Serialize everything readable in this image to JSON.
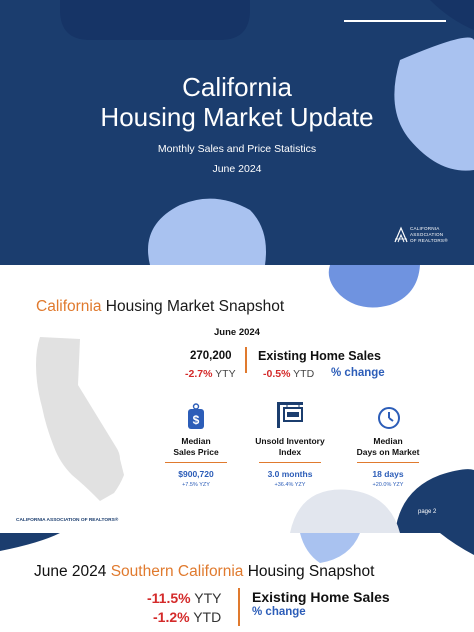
{
  "cover": {
    "title_line1": "California",
    "title_line2": "Housing Market Update",
    "subtitle": "Monthly Sales and Price Statistics",
    "date": "June 2024",
    "logo_line1": "CALIFORNIA",
    "logo_line2": "ASSOCIATION",
    "logo_line3": "OF REALTORS®"
  },
  "snapshot": {
    "title_prefix": "California",
    "title_rest": " Housing Market Snapshot",
    "period": "June 2024",
    "sales_value": "270,200",
    "sales_label": "Existing Home Sales",
    "yty_value": "-2.7%",
    "yty_label": " YTY",
    "ytd_value": "-0.5%",
    "ytd_label": " YTD",
    "pct_change_label": "% change",
    "metrics": [
      {
        "label_line1": "Median",
        "label_line2": "Sales Price",
        "value": "$900,720",
        "change": "+7.5% YZY"
      },
      {
        "label_line1": "Unsold Inventory",
        "label_line2": "Index",
        "value": "3.0 months",
        "change": "+36.4% YZY"
      },
      {
        "label_line1": "Median",
        "label_line2": "Days on Market",
        "value": "18 days",
        "change": "+20.0% YZY"
      }
    ],
    "footer_logo": "CALIFORNIA ASSOCIATION OF REALTORS®",
    "page": "page 2"
  },
  "southern": {
    "title_prefix": "June 2024 ",
    "title_region": "Southern California",
    "title_rest": " Housing Snapshot",
    "yty_value": "-11.5%",
    "yty_label": " YTY",
    "ytd_value": "-1.2%",
    "ytd_label": " YTD",
    "sales_label": "Existing Home Sales",
    "pct_change_label": "% change"
  },
  "colors": {
    "navy": "#1b3d6e",
    "light_blue": "#a9c2f0",
    "mid_blue": "#6f93e0",
    "orange": "#e07a2e",
    "red": "#d42a2a",
    "link_blue": "#2c5db8"
  }
}
